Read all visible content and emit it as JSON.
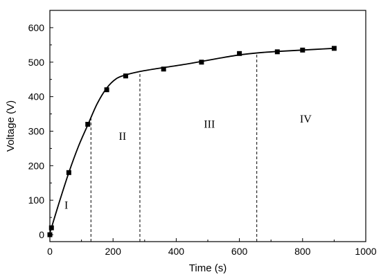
{
  "chart_data": {
    "type": "scatter",
    "xlabel": "Time (s)",
    "ylabel": "Voltage (V)",
    "xlim": [
      0,
      1000
    ],
    "ylim": [
      -20,
      650
    ],
    "xticks": [
      0,
      200,
      400,
      600,
      800,
      1000
    ],
    "yticks": [
      0,
      100,
      200,
      300,
      400,
      500,
      600
    ],
    "grid": false,
    "series": [
      {
        "x": [
          0,
          5,
          60,
          120,
          180,
          240,
          360,
          480,
          600,
          720,
          800,
          900
        ],
        "y": [
          0,
          20,
          180,
          320,
          420,
          460,
          480,
          500,
          525,
          530,
          535,
          540
        ]
      }
    ],
    "fit_curve": {
      "x": [
        0,
        30,
        60,
        90,
        120,
        150,
        180,
        210,
        240,
        280,
        330,
        380,
        430,
        480,
        540,
        600,
        660,
        720,
        780,
        840,
        900
      ],
      "y": [
        5,
        95,
        180,
        255,
        318,
        380,
        425,
        452,
        463,
        472,
        480,
        487,
        494,
        502,
        512,
        521,
        527,
        531,
        534,
        537,
        540
      ]
    },
    "region_dividers": [
      130,
      285,
      655
    ],
    "regions": [
      {
        "label": "I",
        "x": 52,
        "y": 75
      },
      {
        "label": "II",
        "x": 230,
        "y": 275
      },
      {
        "label": "III",
        "x": 505,
        "y": 310
      },
      {
        "label": "IV",
        "x": 810,
        "y": 325
      }
    ]
  }
}
